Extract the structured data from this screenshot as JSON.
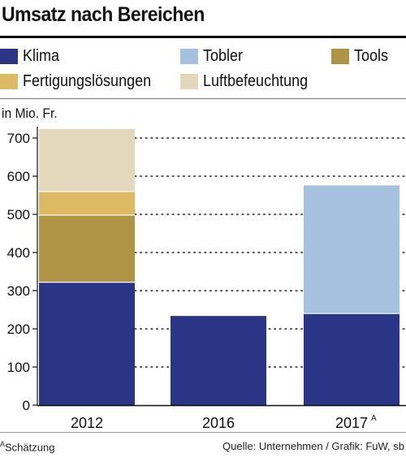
{
  "title": "Umsatz nach Bereichen",
  "legend": [
    {
      "label": "Klima",
      "color": "#2b3585"
    },
    {
      "label": "Tobler",
      "color": "#a6c1df"
    },
    {
      "label": "Tools",
      "color": "#b09446"
    },
    {
      "label": "Fertigungslösungen",
      "color": "#ddb963"
    },
    {
      "label": "Luftbefeuchtung",
      "color": "#e3d8bc"
    }
  ],
  "unit_label": "in Mio. Fr.",
  "footnote_marker": "A",
  "footnote_text": "Schätzung",
  "source": "Quelle: Unternehmen / Grafik: FuW, sb",
  "chart_data": {
    "type": "bar",
    "stacked": true,
    "categories": [
      "2012",
      "2016",
      "2017"
    ],
    "category_superscripts": [
      "",
      "",
      "A"
    ],
    "ylabel": "in Mio. Fr.",
    "ylim": [
      0,
      750
    ],
    "yticks": [
      0,
      100,
      200,
      300,
      400,
      500,
      600,
      700
    ],
    "grid": "dotted",
    "series": [
      {
        "name": "Klima",
        "color": "#2b3585",
        "values": [
          322,
          235,
          240
        ]
      },
      {
        "name": "Tobler",
        "color": "#a6c1df",
        "values": [
          0,
          0,
          337
        ]
      },
      {
        "name": "Tools",
        "color": "#b09446",
        "values": [
          176,
          0,
          0
        ]
      },
      {
        "name": "Fertigungslösungen",
        "color": "#ddb963",
        "values": [
          62,
          0,
          0
        ]
      },
      {
        "name": "Luftbefeuchtung",
        "color": "#e3d8bc",
        "values": [
          165,
          0,
          0
        ]
      }
    ]
  }
}
